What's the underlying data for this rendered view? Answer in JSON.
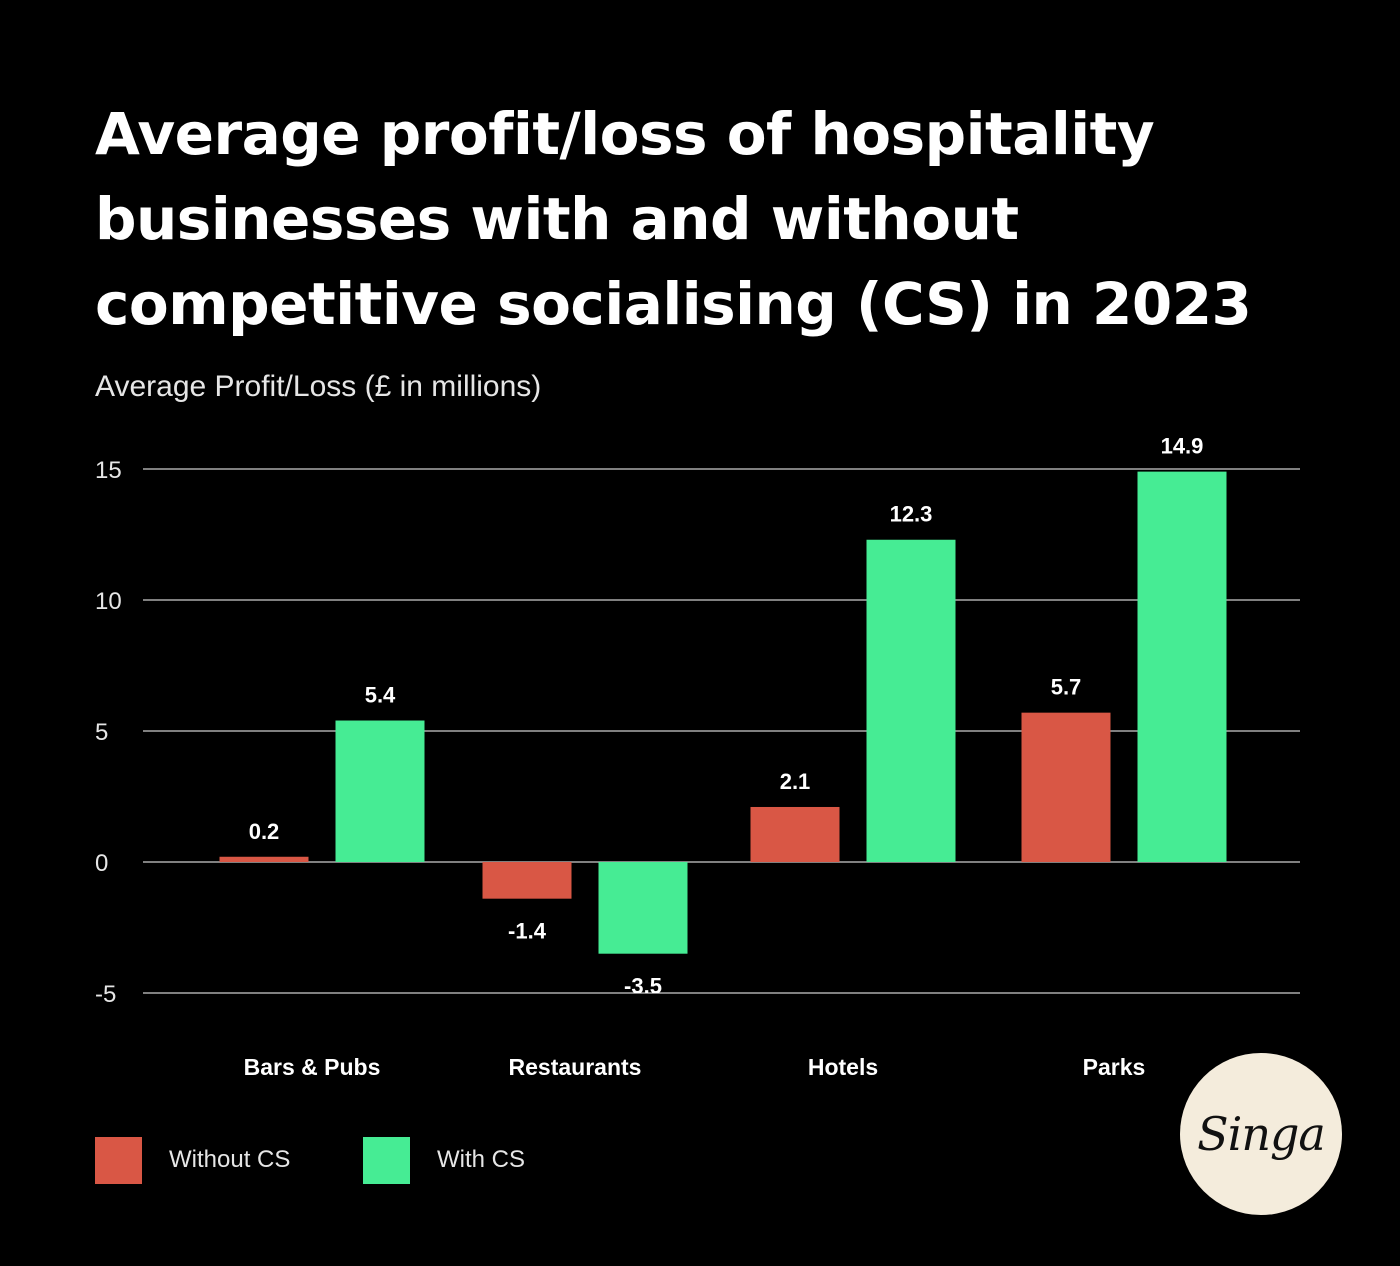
{
  "title": "Average profit/loss of hospitality businesses with and without competitive socialising (CS) in 2023",
  "subtitle": "Average Profit/Loss (£ in millions)",
  "colors": {
    "without_cs": "#d95745",
    "with_cs": "#46ec94",
    "background": "#000000",
    "gridline": "#ffffff"
  },
  "chart_data": {
    "type": "bar",
    "title": "Average profit/loss of hospitality businesses with and without competitive socialising (CS) in 2023",
    "xlabel": "",
    "ylabel": "Average Profit/Loss (£ in millions)",
    "categories": [
      "Bars & Pubs",
      "Restaurants",
      "Hotels",
      "Parks"
    ],
    "series": [
      {
        "name": "Without CS",
        "values": [
          0.2,
          -1.4,
          2.1,
          5.7
        ],
        "labels": [
          "0.2",
          "-1.4",
          "2.1",
          "5.7"
        ]
      },
      {
        "name": "With CS",
        "values": [
          5.4,
          -3.5,
          12.3,
          14.9
        ],
        "labels": [
          "5.4",
          "-3.5",
          "12.3",
          "14.9"
        ]
      }
    ],
    "ylim": [
      -5,
      15
    ],
    "yticks": [
      15,
      10,
      5,
      0,
      -5
    ],
    "ytick_labels": [
      "15",
      "10",
      "5",
      "0",
      "-5"
    ],
    "grid": true,
    "legend": "bottom-left"
  },
  "legend": [
    {
      "label": "Without CS",
      "color": "#d95745"
    },
    {
      "label": "With CS",
      "color": "#46ec94"
    }
  ],
  "logo": {
    "text": "Singa"
  }
}
